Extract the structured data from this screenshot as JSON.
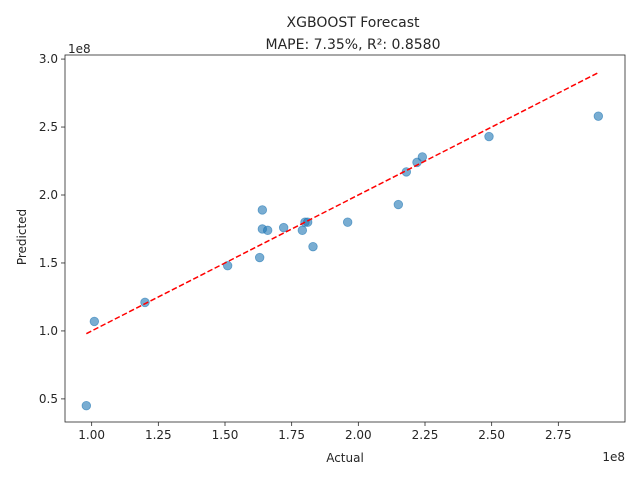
{
  "chart_data": {
    "type": "scatter",
    "title": "XGBOOST Forecast",
    "subtitle": "MAPE: 7.35%, R²: 0.8580",
    "xlabel": "Actual",
    "ylabel": "Predicted",
    "x_offset_label": "1e8",
    "y_offset_label": "1e8",
    "xlim": [
      0.9,
      3.0
    ],
    "ylim": [
      0.33,
      3.03
    ],
    "x_ticks": [
      1.0,
      1.25,
      1.5,
      1.75,
      2.0,
      2.25,
      2.5,
      2.75
    ],
    "x_tick_labels": [
      "1.00",
      "1.25",
      "1.50",
      "1.75",
      "2.00",
      "2.25",
      "2.50",
      "2.75"
    ],
    "y_ticks": [
      0.5,
      1.0,
      1.5,
      2.0,
      2.5,
      3.0
    ],
    "y_tick_labels": [
      "0.5",
      "1.0",
      "1.5",
      "2.0",
      "2.5",
      "3.0"
    ],
    "grid": false,
    "point_color": "#1f77b4",
    "line_color": "#ff0000",
    "reference_line": {
      "x": [
        0.98,
        2.9
      ],
      "y": [
        0.98,
        2.9
      ]
    },
    "points": [
      {
        "x": 0.98,
        "y": 0.45
      },
      {
        "x": 1.01,
        "y": 1.07
      },
      {
        "x": 1.2,
        "y": 1.21
      },
      {
        "x": 1.51,
        "y": 1.48
      },
      {
        "x": 1.63,
        "y": 1.54
      },
      {
        "x": 1.64,
        "y": 1.89
      },
      {
        "x": 1.64,
        "y": 1.75
      },
      {
        "x": 1.66,
        "y": 1.74
      },
      {
        "x": 1.72,
        "y": 1.76
      },
      {
        "x": 1.79,
        "y": 1.74
      },
      {
        "x": 1.8,
        "y": 1.8
      },
      {
        "x": 1.81,
        "y": 1.8
      },
      {
        "x": 1.83,
        "y": 1.62
      },
      {
        "x": 1.96,
        "y": 1.8
      },
      {
        "x": 2.15,
        "y": 1.93
      },
      {
        "x": 2.18,
        "y": 2.17
      },
      {
        "x": 2.22,
        "y": 2.24
      },
      {
        "x": 2.24,
        "y": 2.28
      },
      {
        "x": 2.49,
        "y": 2.43
      },
      {
        "x": 2.9,
        "y": 2.58
      }
    ]
  }
}
